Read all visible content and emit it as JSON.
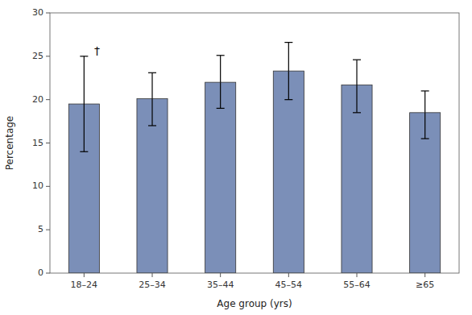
{
  "chart_data": {
    "type": "bar",
    "categories": [
      "18–24",
      "25–34",
      "35–44",
      "45–54",
      "55–64",
      "≥65"
    ],
    "values": [
      19.5,
      20.1,
      22.0,
      23.3,
      21.7,
      18.5
    ],
    "errors_upper": [
      5.5,
      3.0,
      3.1,
      3.3,
      2.9,
      2.5
    ],
    "errors_lower": [
      5.5,
      3.1,
      3.0,
      3.3,
      3.2,
      3.0
    ],
    "color": "#7b8fb8",
    "xlabel": "Age group (yrs)",
    "ylabel": "Percentage",
    "ylim": [
      0,
      30
    ],
    "yticks": [
      0,
      5,
      10,
      15,
      20,
      25,
      30
    ],
    "grid": false,
    "annotations": [
      {
        "text": "†",
        "category": "18–24",
        "y": 25.5
      }
    ]
  }
}
